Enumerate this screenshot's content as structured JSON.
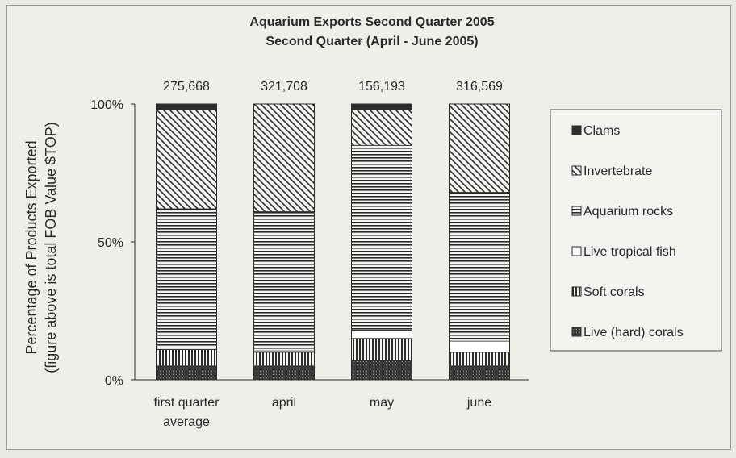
{
  "chart_data": {
    "type": "bar",
    "stacked": "percent",
    "title": [
      "Aquarium Exports Second Quarter 2005",
      "Second Quarter (April - June 2005)"
    ],
    "ylabel": [
      "Percentage of Products Exported",
      "(figure above is total FOB Value $TOP)"
    ],
    "xlabel": "",
    "yticks": [
      "0%",
      "50%",
      "100%"
    ],
    "ylim": [
      0,
      100
    ],
    "categories": [
      [
        "first quarter",
        "average"
      ],
      [
        "april"
      ],
      [
        "may"
      ],
      [
        "june"
      ]
    ],
    "totals": [
      "275,668",
      "321,708",
      "156,193",
      "316,569"
    ],
    "legend_position": "right",
    "series": [
      {
        "name": "Live (hard) corals",
        "pattern": "dots-dark",
        "values": [
          5,
          5,
          7,
          5
        ]
      },
      {
        "name": "Soft corals",
        "pattern": "vertical",
        "values": [
          6,
          5,
          8,
          5
        ]
      },
      {
        "name": "Live tropical fish",
        "pattern": "white",
        "values": [
          0.5,
          0.5,
          3,
          4
        ]
      },
      {
        "name": "Aquarium rocks",
        "pattern": "horizontal",
        "values": [
          50.5,
          50.5,
          67,
          54
        ]
      },
      {
        "name": "Invertebrate",
        "pattern": "diagonal",
        "values": [
          36,
          39,
          13,
          32
        ]
      },
      {
        "name": "Clams",
        "pattern": "solid-dark",
        "values": [
          2,
          0,
          2,
          0
        ]
      }
    ],
    "legend_order": [
      "Clams",
      "Invertebrate",
      "Aquarium rocks",
      "Live tropical fish",
      "Soft corals",
      "Live (hard) corals"
    ]
  }
}
